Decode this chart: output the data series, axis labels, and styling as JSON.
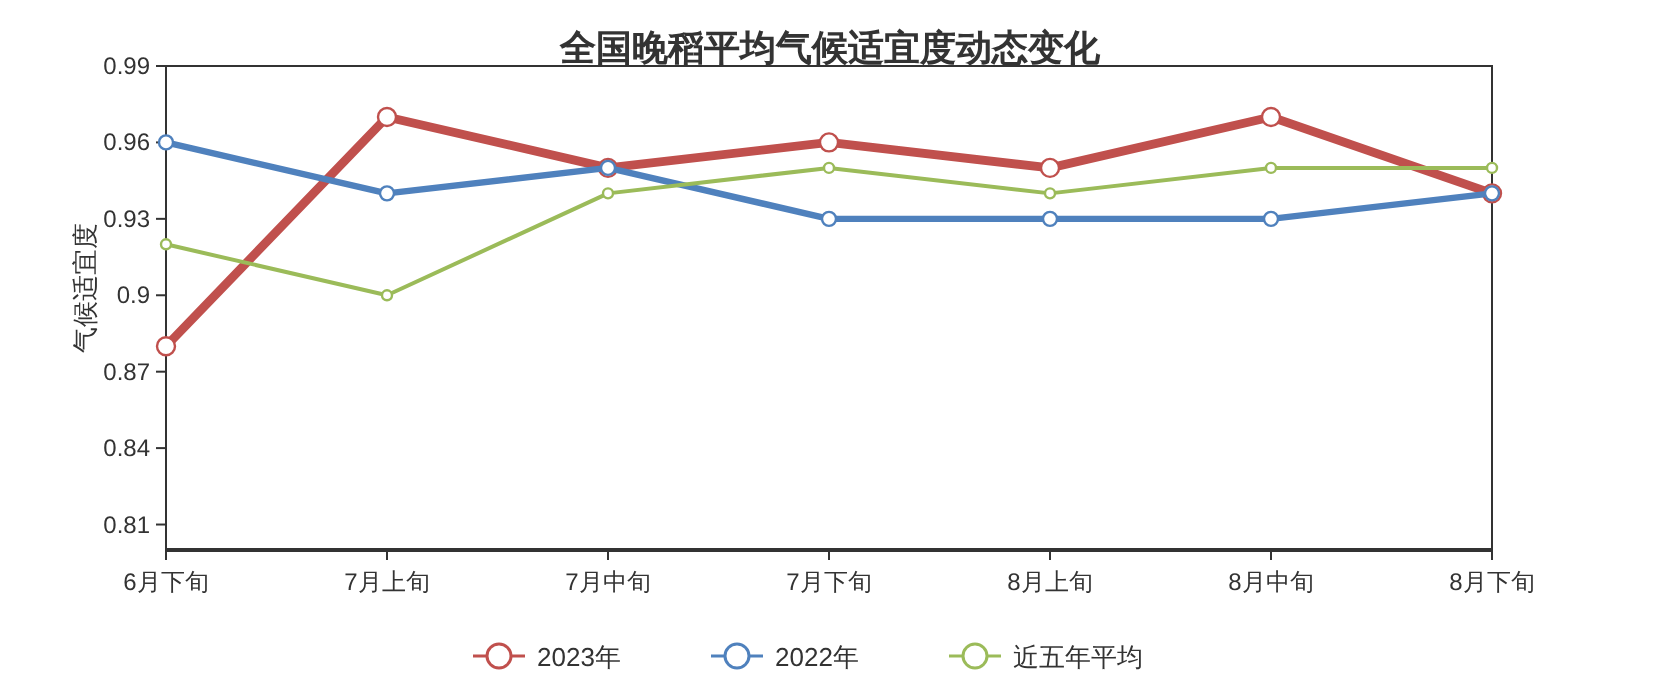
{
  "chart_data": {
    "type": "line",
    "title": "全国晚稻平均气候适宜度动态变化",
    "ylabel": "气候适宜度",
    "categories": [
      "6月下旬",
      "7月上旬",
      "7月中旬",
      "7月下旬",
      "8月上旬",
      "8月中旬",
      "8月下旬"
    ],
    "series": [
      {
        "name": "2023年",
        "color": "#c0504d",
        "values": [
          0.88,
          0.97,
          0.95,
          0.96,
          0.95,
          0.97,
          0.94
        ]
      },
      {
        "name": "2022年",
        "color": "#4f81bd",
        "values": [
          0.96,
          0.94,
          0.95,
          0.93,
          0.93,
          0.93,
          0.94
        ]
      },
      {
        "name": "近五年平均",
        "color": "#9bbb59",
        "values": [
          0.92,
          0.9,
          0.94,
          0.95,
          0.94,
          0.95,
          0.95
        ]
      }
    ],
    "ylim": [
      0.8,
      0.99
    ],
    "yticks": [
      0.81,
      0.84,
      0.87,
      0.9,
      0.93,
      0.96,
      0.99
    ],
    "grid": false,
    "legend": "bottom",
    "marker": "circle",
    "line_style": "solid"
  }
}
